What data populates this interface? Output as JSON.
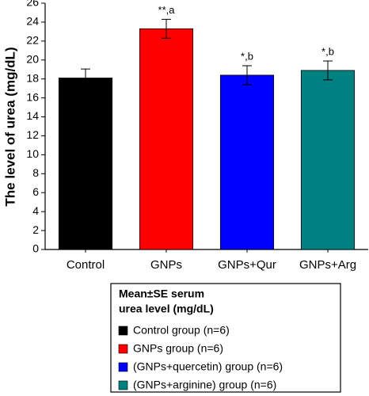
{
  "chart_data": {
    "type": "bar",
    "y_label": "The level of urea (mg/dL)",
    "categories": [
      "Control",
      "GNPs",
      "GNPs+Qur",
      "GNPs+Arg"
    ],
    "values": [
      18.1,
      23.3,
      18.4,
      18.9
    ],
    "errors": [
      0.95,
      1.0,
      1.0,
      1.0
    ],
    "colors": [
      "#000000",
      "#ff0000",
      "#0000ff",
      "#008080"
    ],
    "annotations": [
      null,
      "**,a",
      "*,b",
      "*,b"
    ],
    "ylim": [
      0,
      26
    ],
    "yticks": [
      0,
      2,
      4,
      6,
      8,
      10,
      12,
      14,
      16,
      18,
      20,
      22,
      24,
      26
    ],
    "legend": {
      "title": [
        "Mean±SE serum",
        "urea level (mg/dL)"
      ],
      "entries": [
        "Control group (n=6)",
        "GNPs group (n=6)",
        "(GNPs+quercetin) group (n=6)",
        "(GNPs+arginine) group (n=6)"
      ]
    }
  }
}
